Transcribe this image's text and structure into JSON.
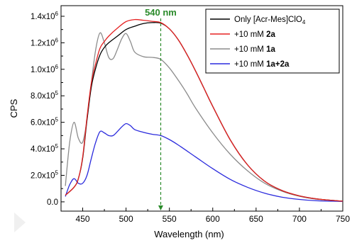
{
  "chart_data": {
    "type": "line",
    "xlabel": "Wavelength (nm)",
    "ylabel": "CPS",
    "xlim": [
      425,
      750
    ],
    "ylim": [
      -70000,
      1480000
    ],
    "x_ticks": [
      450,
      500,
      550,
      600,
      650,
      700,
      750
    ],
    "y_ticks": [
      {
        "value": 0,
        "mantissa": "0.0",
        "exp": ""
      },
      {
        "value": 200000,
        "mantissa": "2.0x10",
        "exp": "5"
      },
      {
        "value": 400000,
        "mantissa": "4.0x10",
        "exp": "5"
      },
      {
        "value": 600000,
        "mantissa": "6.0x10",
        "exp": "5"
      },
      {
        "value": 800000,
        "mantissa": "8.0x10",
        "exp": "5"
      },
      {
        "value": 1000000,
        "mantissa": "1.0x10",
        "exp": "6"
      },
      {
        "value": 1200000,
        "mantissa": "1.2x10",
        "exp": "6"
      },
      {
        "value": 1400000,
        "mantissa": "1.4x10",
        "exp": "6"
      }
    ],
    "grid": false,
    "legend_position": "top-right",
    "annotation": {
      "x": 540,
      "label": "540 nm",
      "color": "#2a8a2a"
    },
    "series": [
      {
        "name_parts": [
          {
            "t": "Only [Acr-Mes]ClO",
            "b": false
          },
          {
            "t": "4",
            "b": false,
            "sub": true
          }
        ],
        "color": "#000000",
        "x": [
          430,
          440,
          445,
          450,
          455,
          460,
          465,
          470,
          475,
          480,
          490,
          500,
          510,
          520,
          530,
          540,
          550,
          560,
          570,
          580,
          590,
          600,
          620,
          640,
          660,
          680,
          700,
          720,
          740,
          750
        ],
        "y": [
          50000,
          110000,
          175000,
          330000,
          620000,
          870000,
          1010000,
          1110000,
          1165000,
          1200000,
          1250000,
          1300000,
          1325000,
          1345000,
          1352000,
          1348000,
          1305000,
          1225000,
          1115000,
          990000,
          855000,
          720000,
          470000,
          280000,
          155000,
          85000,
          45000,
          22000,
          10000,
          5000
        ]
      },
      {
        "name_parts": [
          {
            "t": "+10 mM ",
            "b": false
          },
          {
            "t": "2a",
            "b": true
          }
        ],
        "color": "#e52222",
        "x": [
          430,
          440,
          445,
          450,
          455,
          460,
          465,
          470,
          475,
          480,
          490,
          500,
          510,
          520,
          530,
          540,
          550,
          560,
          570,
          580,
          590,
          600,
          620,
          640,
          660,
          680,
          700,
          720,
          740,
          750
        ],
        "y": [
          50000,
          110000,
          175000,
          340000,
          640000,
          900000,
          1045000,
          1160000,
          1210000,
          1250000,
          1310000,
          1360000,
          1375000,
          1370000,
          1362000,
          1352000,
          1305000,
          1225000,
          1115000,
          990000,
          855000,
          720000,
          470000,
          280000,
          155000,
          85000,
          45000,
          22000,
          10000,
          5000
        ]
      },
      {
        "name_parts": [
          {
            "t": "+10 mM ",
            "b": false
          },
          {
            "t": "1a",
            "b": true
          }
        ],
        "color": "#8c8c8c",
        "x": [
          430,
          435,
          440,
          445,
          450,
          455,
          460,
          465,
          470,
          475,
          480,
          485,
          490,
          495,
          500,
          505,
          510,
          520,
          530,
          540,
          550,
          560,
          570,
          580,
          600,
          620,
          640,
          660,
          680,
          700,
          720,
          750
        ],
        "y": [
          120000,
          450000,
          600000,
          480000,
          450000,
          620000,
          900000,
          1150000,
          1275000,
          1200000,
          1090000,
          1080000,
          1150000,
          1230000,
          1270000,
          1210000,
          1130000,
          1095000,
          1090000,
          1075000,
          1010000,
          920000,
          820000,
          710000,
          520000,
          360000,
          235000,
          140000,
          80000,
          42000,
          20000,
          5000
        ]
      },
      {
        "name_parts": [
          {
            "t": "+10 mM ",
            "b": false
          },
          {
            "t": "1a+2a",
            "b": true
          }
        ],
        "color": "#2b2bdd",
        "x": [
          430,
          435,
          440,
          445,
          450,
          455,
          460,
          465,
          470,
          475,
          480,
          485,
          490,
          495,
          500,
          505,
          510,
          520,
          530,
          540,
          550,
          560,
          580,
          600,
          620,
          640,
          660,
          680,
          700,
          720,
          750
        ],
        "y": [
          40000,
          130000,
          175000,
          140000,
          140000,
          200000,
          330000,
          450000,
          530000,
          520000,
          500000,
          500000,
          530000,
          565000,
          590000,
          575000,
          545000,
          525000,
          510000,
          500000,
          470000,
          430000,
          340000,
          250000,
          170000,
          110000,
          65000,
          35000,
          18000,
          8000,
          3000
        ]
      }
    ]
  }
}
